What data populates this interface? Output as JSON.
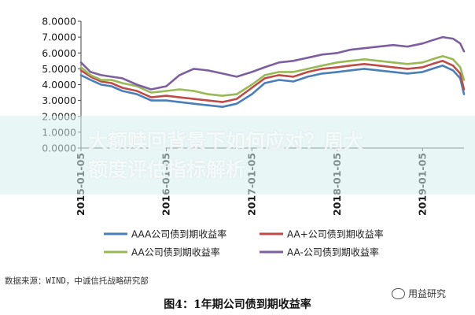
{
  "chart_data": {
    "type": "line",
    "y_ticks": [
      "0.0000",
      "1.0000",
      "2.0000",
      "3.0000",
      "4.0000",
      "5.0000",
      "6.0000",
      "7.0000",
      "8.0000"
    ],
    "ylim": [
      0,
      8
    ],
    "x_ticks": [
      "2015-01-05",
      "2016-01-05",
      "2017-01-05",
      "2018-01-05",
      "2019-01-05"
    ],
    "x_start": "2015-01-05",
    "x_end": "2019-07-01",
    "grid": false,
    "legend_position": "bottom",
    "series": [
      {
        "name": "AAA公司债到期收益率",
        "color": "#4a7ebb",
        "x": [
          "2015-01-05",
          "2015-02-15",
          "2015-04-01",
          "2015-05-15",
          "2015-07-01",
          "2015-09-01",
          "2015-11-01",
          "2016-01-05",
          "2016-03-01",
          "2016-05-01",
          "2016-07-01",
          "2016-09-01",
          "2016-11-01",
          "2017-01-05",
          "2017-03-01",
          "2017-05-01",
          "2017-07-01",
          "2017-09-01",
          "2017-11-01",
          "2018-01-05",
          "2018-03-01",
          "2018-05-01",
          "2018-07-01",
          "2018-09-01",
          "2018-11-01",
          "2019-01-05",
          "2019-02-15",
          "2019-04-01",
          "2019-05-15",
          "2019-06-15",
          "2019-07-01"
        ],
        "y": [
          4.6,
          4.3,
          4.0,
          3.9,
          3.6,
          3.4,
          3.0,
          3.0,
          2.9,
          2.8,
          2.7,
          2.6,
          2.8,
          3.4,
          4.1,
          4.3,
          4.2,
          4.5,
          4.7,
          4.8,
          4.9,
          5.0,
          4.9,
          4.8,
          4.7,
          4.8,
          5.0,
          5.2,
          4.9,
          4.4,
          3.4
        ]
      },
      {
        "name": "AA+公司债到期收益率",
        "color": "#be4b48",
        "x": [
          "2015-01-05",
          "2015-02-15",
          "2015-04-01",
          "2015-05-15",
          "2015-07-01",
          "2015-09-01",
          "2015-11-01",
          "2016-01-05",
          "2016-03-01",
          "2016-05-01",
          "2016-07-01",
          "2016-09-01",
          "2016-11-01",
          "2017-01-05",
          "2017-03-01",
          "2017-05-01",
          "2017-07-01",
          "2017-09-01",
          "2017-11-01",
          "2018-01-05",
          "2018-03-01",
          "2018-05-01",
          "2018-07-01",
          "2018-09-01",
          "2018-11-01",
          "2019-01-05",
          "2019-02-15",
          "2019-04-01",
          "2019-05-15",
          "2019-06-15",
          "2019-07-01"
        ],
        "y": [
          4.9,
          4.5,
          4.2,
          4.1,
          3.8,
          3.6,
          3.2,
          3.3,
          3.2,
          3.1,
          3.0,
          2.9,
          3.1,
          3.8,
          4.4,
          4.6,
          4.5,
          4.8,
          5.0,
          5.1,
          5.2,
          5.3,
          5.2,
          5.1,
          5.0,
          5.1,
          5.3,
          5.5,
          5.2,
          4.7,
          3.7
        ]
      },
      {
        "name": "AA公司债到期收益率",
        "color": "#98b954",
        "x": [
          "2015-01-05",
          "2015-02-15",
          "2015-04-01",
          "2015-05-15",
          "2015-07-01",
          "2015-09-01",
          "2015-11-01",
          "2016-01-05",
          "2016-03-01",
          "2016-05-01",
          "2016-07-01",
          "2016-09-01",
          "2016-11-01",
          "2017-01-05",
          "2017-03-01",
          "2017-05-01",
          "2017-07-01",
          "2017-09-01",
          "2017-11-01",
          "2018-01-05",
          "2018-03-01",
          "2018-05-01",
          "2018-07-01",
          "2018-09-01",
          "2018-11-01",
          "2019-01-05",
          "2019-02-15",
          "2019-04-01",
          "2019-05-15",
          "2019-06-15",
          "2019-07-01"
        ],
        "y": [
          5.1,
          4.6,
          4.3,
          4.3,
          4.1,
          3.9,
          3.5,
          3.6,
          3.7,
          3.6,
          3.4,
          3.3,
          3.4,
          4.0,
          4.6,
          4.8,
          4.8,
          5.0,
          5.2,
          5.4,
          5.5,
          5.6,
          5.5,
          5.4,
          5.3,
          5.4,
          5.6,
          5.8,
          5.6,
          5.1,
          4.3
        ]
      },
      {
        "name": "AA-公司债到期收益率",
        "color": "#7d5fa0",
        "x": [
          "2015-01-05",
          "2015-02-15",
          "2015-04-01",
          "2015-05-15",
          "2015-07-01",
          "2015-09-01",
          "2015-11-01",
          "2016-01-05",
          "2016-03-01",
          "2016-05-01",
          "2016-07-01",
          "2016-09-01",
          "2016-11-01",
          "2017-01-05",
          "2017-03-01",
          "2017-05-01",
          "2017-07-01",
          "2017-09-01",
          "2017-11-01",
          "2018-01-05",
          "2018-03-01",
          "2018-05-01",
          "2018-07-01",
          "2018-09-01",
          "2018-11-01",
          "2019-01-05",
          "2019-02-15",
          "2019-04-01",
          "2019-05-15",
          "2019-06-15",
          "2019-07-01"
        ],
        "y": [
          5.4,
          4.8,
          4.6,
          4.5,
          4.4,
          4.0,
          3.7,
          3.9,
          4.6,
          5.0,
          4.9,
          4.7,
          4.5,
          4.8,
          5.1,
          5.4,
          5.5,
          5.7,
          5.9,
          6.0,
          6.2,
          6.3,
          6.4,
          6.5,
          6.4,
          6.6,
          6.8,
          7.0,
          6.9,
          6.6,
          6.1
        ]
      }
    ]
  },
  "legend": [
    {
      "label": "AAA公司债到期收益率",
      "color": "#4a7ebb"
    },
    {
      "label": "AA+公司债到期收益率",
      "color": "#be4b48"
    },
    {
      "label": "AA公司债到期收益率",
      "color": "#98b954"
    },
    {
      "label": "AA-公司债到期收益率",
      "color": "#7d5fa0"
    }
  ],
  "source": "数据来源：WIND，中诚信托战略研究部",
  "caption": "图4：1年期公司债到期收益率",
  "overlay": {
    "line1": "大额赎回背景下如何应对？周大",
    "line2": "额度评估指标解析"
  },
  "watermark": {
    "icon": "wechat-icon",
    "text": "用益研究"
  }
}
